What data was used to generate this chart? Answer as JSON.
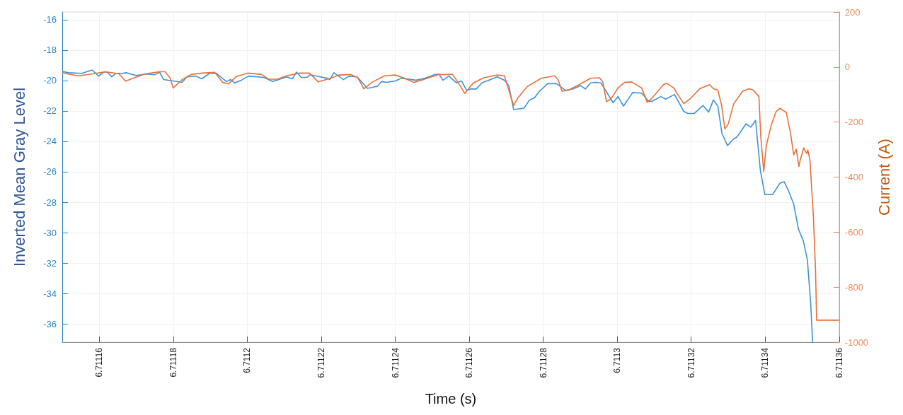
{
  "chart_data": {
    "type": "line",
    "xlabel": "Time (s)",
    "ylabel": "Inverted Mean Gray Level",
    "y2label": "Current (A)",
    "grid": true,
    "xlim": [
      6.71115,
      6.71136
    ],
    "xticks": [
      6.71116,
      6.71118,
      6.7112,
      6.71122,
      6.71124,
      6.71126,
      6.71128,
      6.7113,
      6.71132,
      6.71134,
      6.71136
    ],
    "ylim": [
      -37.2,
      -15.5
    ],
    "yticks": [
      -16,
      -18,
      -20,
      -22,
      -24,
      -26,
      -28,
      -30,
      -32,
      -34,
      -36
    ],
    "y2lim": [
      -1000,
      200
    ],
    "y2ticks": [
      200,
      0,
      -200,
      -400,
      -600,
      -800,
      -1000
    ],
    "series": [
      {
        "color": "#3d93d6",
        "axis": "y",
        "x": [
          6.71115,
          6.7111517,
          6.7111553,
          6.7111581,
          6.7111598,
          6.7111612,
          6.7111621,
          6.7111634,
          6.7111645,
          6.7111662,
          6.7111673,
          6.7111699,
          6.7111726,
          6.711175,
          6.7111763,
          6.7111774,
          6.7111824,
          6.7111837,
          6.7111861,
          6.7111877,
          6.7111898,
          6.7111916,
          6.7111944,
          6.7111955,
          6.7111966,
          6.7111984,
          6.7112004,
          6.7112045,
          6.7112069,
          6.7112085,
          6.7112106,
          6.7112122,
          6.7112133,
          6.7112146,
          6.7112161,
          6.711217,
          6.7112198,
          6.7112216,
          6.7112223,
          6.7112234,
          6.711226,
          6.7112275,
          6.7112297,
          6.7112325,
          6.7112352,
          6.7112363,
          6.7112376,
          6.71124,
          6.7112417,
          6.7112455,
          6.7112481,
          6.7112505,
          6.7112518,
          6.7112529,
          6.7112545,
          6.7112566,
          6.7112579,
          6.7112593,
          6.7112603,
          6.7112619,
          6.7112634,
          6.7112676,
          6.7112695,
          6.7112707,
          6.711272,
          6.7112748,
          6.7112763,
          6.7112776,
          6.711279,
          6.7112812,
          6.7112836,
          6.711286,
          6.7112879,
          6.7112901,
          6.7112914,
          6.7112928,
          6.7112941,
          6.7112956,
          6.7112989,
          6.7113002,
          6.7113017,
          6.7113042,
          6.7113066,
          6.7113085,
          6.7113094,
          6.7113118,
          6.7113131,
          6.7113155,
          6.711318,
          6.7113191,
          6.7113208,
          6.7113232,
          6.7113247,
          6.711326,
          6.7113272,
          6.7113283,
          6.7113298,
          6.7113311,
          6.7113324,
          6.7113348,
          6.7113361,
          6.7113374,
          6.7113387,
          6.7113399,
          6.711342,
          6.711344,
          6.7113451,
          6.7113462,
          6.7113477,
          6.711349,
          6.7113503,
          6.7113514,
          6.7113523,
          6.7113528
        ],
        "values": [
          -19.4,
          -19.49,
          -19.53,
          -19.31,
          -19.71,
          -19.45,
          -19.45,
          -19.76,
          -19.53,
          -19.53,
          -19.49,
          -19.67,
          -19.58,
          -19.62,
          -19.45,
          -19.94,
          -20.12,
          -19.76,
          -19.71,
          -19.89,
          -19.53,
          -19.53,
          -20.07,
          -19.94,
          -20.16,
          -19.98,
          -19.71,
          -19.8,
          -20.07,
          -19.94,
          -19.76,
          -19.89,
          -19.45,
          -19.8,
          -19.8,
          -19.62,
          -19.76,
          -19.85,
          -19.94,
          -19.49,
          -19.94,
          -19.71,
          -19.76,
          -20.52,
          -20.38,
          -20.07,
          -20.12,
          -20.03,
          -19.85,
          -19.98,
          -19.85,
          -19.62,
          -19.58,
          -19.98,
          -19.71,
          -20.16,
          -20.03,
          -20.65,
          -20.56,
          -20.56,
          -20.16,
          -19.76,
          -19.98,
          -20.34,
          -21.91,
          -21.82,
          -21.28,
          -21.15,
          -20.7,
          -20.21,
          -20.21,
          -20.65,
          -20.56,
          -20.34,
          -20.56,
          -20.16,
          -20.12,
          -20.16,
          -21.46,
          -21.06,
          -21.68,
          -20.79,
          -20.83,
          -21.37,
          -21.37,
          -21.06,
          -21.23,
          -20.92,
          -22.04,
          -22.17,
          -22.17,
          -21.64,
          -22.08,
          -21.28,
          -21.68,
          -23.47,
          -24.28,
          -23.92,
          -23.7,
          -22.85,
          -23.07,
          -22.62,
          -25.93,
          -27.5,
          -27.5,
          -26.74,
          -26.65,
          -27.19,
          -28.13,
          -29.78,
          -30.54,
          -31.79,
          -34.66,
          -37.2
        ]
      },
      {
        "color": "#e8703a",
        "axis": "y2",
        "x": [
          6.71115,
          6.7111511,
          6.7111544,
          6.7111585,
          6.7111616,
          6.7111653,
          6.7111671,
          6.7111695,
          6.7111726,
          6.7111763,
          6.7111778,
          6.7111791,
          6.71118,
          6.7111824,
          6.7111848,
          6.7111879,
          6.7111912,
          6.7111934,
          6.7111949,
          6.7111971,
          6.7112002,
          6.7112039,
          6.7112058,
          6.7112082,
          6.7112106,
          6.7112142,
          6.7112168,
          6.7112192,
          6.7112229,
          6.7112247,
          6.7112279,
          6.7112299,
          6.7112315,
          6.7112339,
          6.7112371,
          6.71124,
          6.7112426,
          6.711245,
          6.7112487,
          6.7112518,
          6.7112555,
          6.7112569,
          6.7112588,
          6.711261,
          6.7112639,
          6.7112676,
          6.7112695,
          6.711272,
          6.7112731,
          6.7112757,
          6.7112794,
          6.7112831,
          6.711284,
          6.7112851,
          6.7112868,
          6.7112897,
          6.7112928,
          6.7112952,
          6.7112961,
          6.7112971,
          6.7112983,
          6.7113002,
          6.711302,
          6.7113039,
          6.7113066,
          6.7113081,
          6.7113094,
          6.7113125,
          6.7113134,
          6.7113153,
          6.7113164,
          6.711318,
          6.7113199,
          6.7113223,
          6.711325,
          6.711326,
          6.7113272,
          6.7113282,
          6.7113291,
          6.71133,
          6.7113315,
          6.7113339,
          6.7113357,
          6.7113368,
          6.7113383,
          6.7113388,
          6.7113396,
          6.7113403,
          6.7113416,
          6.7113429,
          6.711344,
          6.7113457,
          6.7113468,
          6.7113477,
          6.7113484,
          6.7113491,
          6.7113495,
          6.7113504,
          6.7113512,
          6.7113515,
          6.7113521,
          6.7113526,
          6.711353,
          6.7113536,
          6.7113539,
          6.71136
        ],
        "values": [
          -19,
          -24,
          -32,
          -24,
          -17,
          -24,
          -51,
          -39,
          -24,
          -17,
          -17,
          -39,
          -76,
          -46,
          -27,
          -22,
          -19,
          -56,
          -61,
          -34,
          -22,
          -27,
          -44,
          -44,
          -32,
          -22,
          -22,
          -54,
          -39,
          -29,
          -27,
          -39,
          -79,
          -54,
          -32,
          -29,
          -41,
          -56,
          -41,
          -27,
          -27,
          -54,
          -96,
          -59,
          -39,
          -29,
          -32,
          -140,
          -113,
          -71,
          -41,
          -32,
          -46,
          -88,
          -84,
          -64,
          -41,
          -39,
          -54,
          -126,
          -116,
          -76,
          -56,
          -54,
          -76,
          -128,
          -113,
          -64,
          -59,
          -76,
          -101,
          -133,
          -113,
          -79,
          -64,
          -79,
          -84,
          -138,
          -225,
          -207,
          -133,
          -88,
          -79,
          -84,
          -108,
          -252,
          -380,
          -286,
          -212,
          -163,
          -150,
          -165,
          -237,
          -319,
          -299,
          -361,
          -336,
          -294,
          -314,
          -301,
          -338,
          -452,
          -534,
          -737,
          -920,
          -920
        ]
      }
    ]
  }
}
